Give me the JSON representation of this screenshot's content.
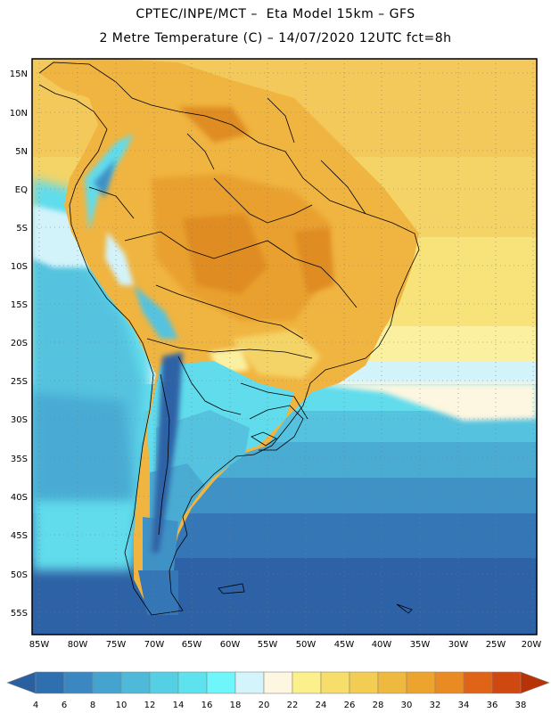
{
  "header": {
    "title_line1": "CPTEC/INPE/MCT –  Eta Model 15km – GFS",
    "title_line2": "2 Metre Temperature (C) – 14/07/2020 12UTC fct=8h"
  },
  "map": {
    "lat_labels": [
      "15N",
      "10N",
      "5N",
      "EQ",
      "5S",
      "10S",
      "15S",
      "20S",
      "25S",
      "30S",
      "35S",
      "40S",
      "45S",
      "50S",
      "55S"
    ],
    "lon_labels": [
      "85W",
      "80W",
      "75W",
      "70W",
      "65W",
      "60W",
      "55W",
      "50W",
      "45W",
      "40W",
      "35W",
      "30W",
      "25W",
      "20W"
    ]
  },
  "colorbar": {
    "labels": [
      "4",
      "6",
      "8",
      "10",
      "12",
      "14",
      "16",
      "18",
      "20",
      "22",
      "24",
      "26",
      "28",
      "30",
      "32",
      "34",
      "36",
      "38"
    ],
    "colors": [
      "#2a5fa0",
      "#2e6fb0",
      "#3a87c2",
      "#45a3cf",
      "#4fb9d9",
      "#55cfe3",
      "#5ee2ee",
      "#6ef6fb",
      "#d4f4fb",
      "#fdf6e0",
      "#fbf08c",
      "#f7dd6a",
      "#f3cc54",
      "#efb83e",
      "#eca42e",
      "#e98b22",
      "#df6418",
      "#cf4810",
      "#b83208"
    ]
  }
}
